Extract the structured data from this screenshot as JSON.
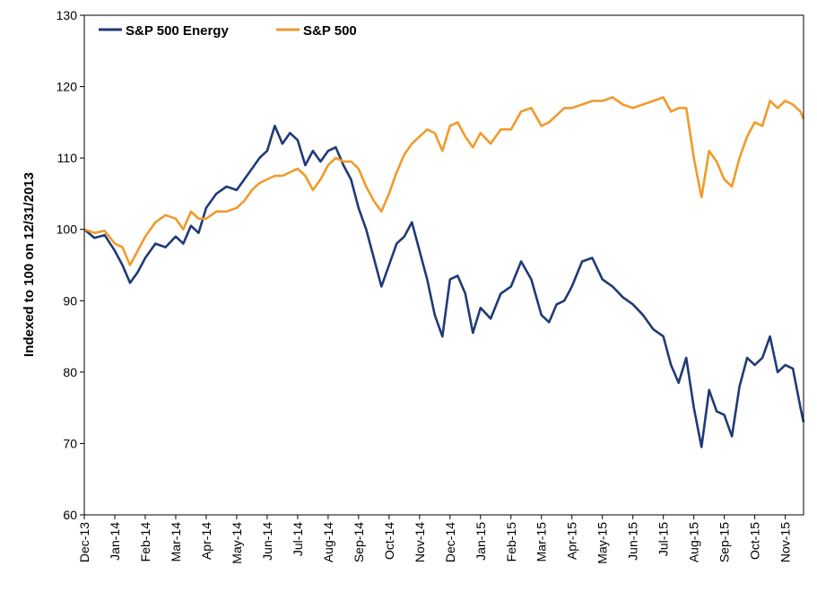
{
  "chart_data": {
    "type": "line",
    "ylabel": "Indexed to 100 on 12/31/2013",
    "ylim": [
      60,
      130
    ],
    "yticks": [
      60,
      70,
      80,
      90,
      100,
      110,
      120,
      130
    ],
    "x_tick_labels": [
      "Dec-13",
      "Jan-14",
      "Feb-14",
      "Mar-14",
      "Apr-14",
      "May-14",
      "Jun-14",
      "Jul-14",
      "Aug-14",
      "Sep-14",
      "Oct-14",
      "Nov-14",
      "Dec-14",
      "Jan-15",
      "Feb-15",
      "Mar-15",
      "Apr-15",
      "May-15",
      "Jun-15",
      "Jul-15",
      "Aug-15",
      "Sep-15",
      "Oct-15",
      "Nov-15"
    ],
    "x_start": "Dec-13",
    "x_end": "Nov-15",
    "legend_position": "top-left",
    "grid": false,
    "series": [
      {
        "name": "S&P 500 Energy",
        "color": "#1f3a78",
        "points": [
          [
            "Dec-13",
            100
          ],
          [
            "Dec-13",
            98.8
          ],
          [
            "Dec-13",
            99.2
          ],
          [
            "Jan-14",
            97
          ],
          [
            "Jan-14",
            95
          ],
          [
            "Jan-14",
            92.5
          ],
          [
            "Jan-14",
            94
          ],
          [
            "Feb-14",
            96
          ],
          [
            "Feb-14",
            98
          ],
          [
            "Feb-14",
            97.5
          ],
          [
            "Mar-14",
            99
          ],
          [
            "Mar-14",
            98
          ],
          [
            "Mar-14",
            100.5
          ],
          [
            "Mar-14",
            99.5
          ],
          [
            "Apr-14",
            103
          ],
          [
            "Apr-14",
            105
          ],
          [
            "Apr-14",
            106
          ],
          [
            "May-14",
            105.5
          ],
          [
            "May-14",
            107
          ],
          [
            "May-14",
            108.5
          ],
          [
            "May-14",
            110
          ],
          [
            "Jun-14",
            111
          ],
          [
            "Jun-14",
            114.5
          ],
          [
            "Jun-14",
            112
          ],
          [
            "Jun-14",
            113.5
          ],
          [
            "Jul-14",
            112.5
          ],
          [
            "Jul-14",
            109
          ],
          [
            "Jul-14",
            111
          ],
          [
            "Jul-14",
            109.5
          ],
          [
            "Aug-14",
            111
          ],
          [
            "Aug-14",
            111.5
          ],
          [
            "Aug-14",
            109
          ],
          [
            "Aug-14",
            107
          ],
          [
            "Sep-14",
            103
          ],
          [
            "Sep-14",
            100
          ],
          [
            "Sep-14",
            96
          ],
          [
            "Sep-14",
            92
          ],
          [
            "Oct-14",
            95
          ],
          [
            "Oct-14",
            98
          ],
          [
            "Oct-14",
            99
          ],
          [
            "Oct-14",
            101
          ],
          [
            "Nov-14",
            97
          ],
          [
            "Nov-14",
            93
          ],
          [
            "Nov-14",
            88
          ],
          [
            "Nov-14",
            85
          ],
          [
            "Dec-14",
            93
          ],
          [
            "Dec-14",
            93.5
          ],
          [
            "Dec-14",
            91
          ],
          [
            "Dec-14",
            85.5
          ],
          [
            "Jan-15",
            89
          ],
          [
            "Jan-15",
            87.5
          ],
          [
            "Jan-15",
            91
          ],
          [
            "Feb-15",
            92
          ],
          [
            "Feb-15",
            95.5
          ],
          [
            "Feb-15",
            93
          ],
          [
            "Mar-15",
            88
          ],
          [
            "Mar-15",
            87
          ],
          [
            "Mar-15",
            89.5
          ],
          [
            "Mar-15",
            90
          ],
          [
            "Apr-15",
            92
          ],
          [
            "Apr-15",
            95.5
          ],
          [
            "Apr-15",
            96
          ],
          [
            "May-15",
            93
          ],
          [
            "May-15",
            92
          ],
          [
            "May-15",
            90.5
          ],
          [
            "Jun-15",
            89.5
          ],
          [
            "Jun-15",
            88
          ],
          [
            "Jun-15",
            86
          ],
          [
            "Jul-15",
            85
          ],
          [
            "Jul-15",
            81
          ],
          [
            "Jul-15",
            78.5
          ],
          [
            "Jul-15",
            82
          ],
          [
            "Aug-15",
            75
          ],
          [
            "Aug-15",
            69.5
          ],
          [
            "Aug-15",
            77.5
          ],
          [
            "Aug-15",
            74.5
          ],
          [
            "Sep-15",
            74
          ],
          [
            "Sep-15",
            71
          ],
          [
            "Sep-15",
            78
          ],
          [
            "Sep-15",
            82
          ],
          [
            "Oct-15",
            81
          ],
          [
            "Oct-15",
            82
          ],
          [
            "Oct-15",
            85
          ],
          [
            "Oct-15",
            80
          ],
          [
            "Nov-15",
            81
          ],
          [
            "Nov-15",
            80.5
          ],
          [
            "Nov-15",
            75
          ],
          [
            "Nov-15",
            73
          ]
        ]
      },
      {
        "name": "S&P 500",
        "color": "#f19a2b",
        "points": [
          [
            "Dec-13",
            100
          ],
          [
            "Dec-13",
            99.5
          ],
          [
            "Dec-13",
            99.8
          ],
          [
            "Jan-14",
            98
          ],
          [
            "Jan-14",
            97.5
          ],
          [
            "Jan-14",
            95
          ],
          [
            "Jan-14",
            97
          ],
          [
            "Feb-14",
            99
          ],
          [
            "Feb-14",
            101
          ],
          [
            "Feb-14",
            102
          ],
          [
            "Mar-14",
            101.5
          ],
          [
            "Mar-14",
            100
          ],
          [
            "Mar-14",
            102.5
          ],
          [
            "Mar-14",
            101.5
          ],
          [
            "Apr-14",
            101.5
          ],
          [
            "Apr-14",
            102.5
          ],
          [
            "Apr-14",
            102.5
          ],
          [
            "May-14",
            103
          ],
          [
            "May-14",
            104
          ],
          [
            "May-14",
            105.5
          ],
          [
            "May-14",
            106.5
          ],
          [
            "Jun-14",
            107
          ],
          [
            "Jun-14",
            107.5
          ],
          [
            "Jun-14",
            107.5
          ],
          [
            "Jun-14",
            108
          ],
          [
            "Jul-14",
            108.5
          ],
          [
            "Jul-14",
            107.5
          ],
          [
            "Jul-14",
            105.5
          ],
          [
            "Jul-14",
            107
          ],
          [
            "Aug-14",
            109
          ],
          [
            "Aug-14",
            110
          ],
          [
            "Aug-14",
            109.5
          ],
          [
            "Aug-14",
            109.5
          ],
          [
            "Sep-14",
            108.5
          ],
          [
            "Sep-14",
            106
          ],
          [
            "Sep-14",
            104
          ],
          [
            "Sep-14",
            102.5
          ],
          [
            "Oct-14",
            105
          ],
          [
            "Oct-14",
            108
          ],
          [
            "Oct-14",
            110.5
          ],
          [
            "Oct-14",
            112
          ],
          [
            "Nov-14",
            113
          ],
          [
            "Nov-14",
            114
          ],
          [
            "Nov-14",
            113.5
          ],
          [
            "Nov-14",
            111
          ],
          [
            "Dec-14",
            114.5
          ],
          [
            "Dec-14",
            115
          ],
          [
            "Dec-14",
            113
          ],
          [
            "Dec-14",
            111.5
          ],
          [
            "Jan-15",
            113.5
          ],
          [
            "Jan-15",
            112
          ],
          [
            "Jan-15",
            114
          ],
          [
            "Feb-15",
            114
          ],
          [
            "Feb-15",
            116.5
          ],
          [
            "Feb-15",
            117
          ],
          [
            "Mar-15",
            114.5
          ],
          [
            "Mar-15",
            115
          ],
          [
            "Mar-15",
            116
          ],
          [
            "Mar-15",
            117
          ],
          [
            "Apr-15",
            117
          ],
          [
            "Apr-15",
            117.5
          ],
          [
            "Apr-15",
            118
          ],
          [
            "May-15",
            118
          ],
          [
            "May-15",
            118.5
          ],
          [
            "May-15",
            117.5
          ],
          [
            "Jun-15",
            117
          ],
          [
            "Jun-15",
            117.5
          ],
          [
            "Jun-15",
            118
          ],
          [
            "Jul-15",
            118.5
          ],
          [
            "Jul-15",
            116.5
          ],
          [
            "Jul-15",
            117
          ],
          [
            "Jul-15",
            117
          ],
          [
            "Aug-15",
            110
          ],
          [
            "Aug-15",
            104.5
          ],
          [
            "Aug-15",
            111
          ],
          [
            "Aug-15",
            109.5
          ],
          [
            "Sep-15",
            107
          ],
          [
            "Sep-15",
            106
          ],
          [
            "Sep-15",
            110
          ],
          [
            "Sep-15",
            113
          ],
          [
            "Oct-15",
            115
          ],
          [
            "Oct-15",
            114.5
          ],
          [
            "Oct-15",
            118
          ],
          [
            "Oct-15",
            117
          ],
          [
            "Nov-15",
            118
          ],
          [
            "Nov-15",
            117.5
          ],
          [
            "Nov-15",
            116.5
          ],
          [
            "Nov-15",
            115.5
          ]
        ]
      }
    ]
  }
}
